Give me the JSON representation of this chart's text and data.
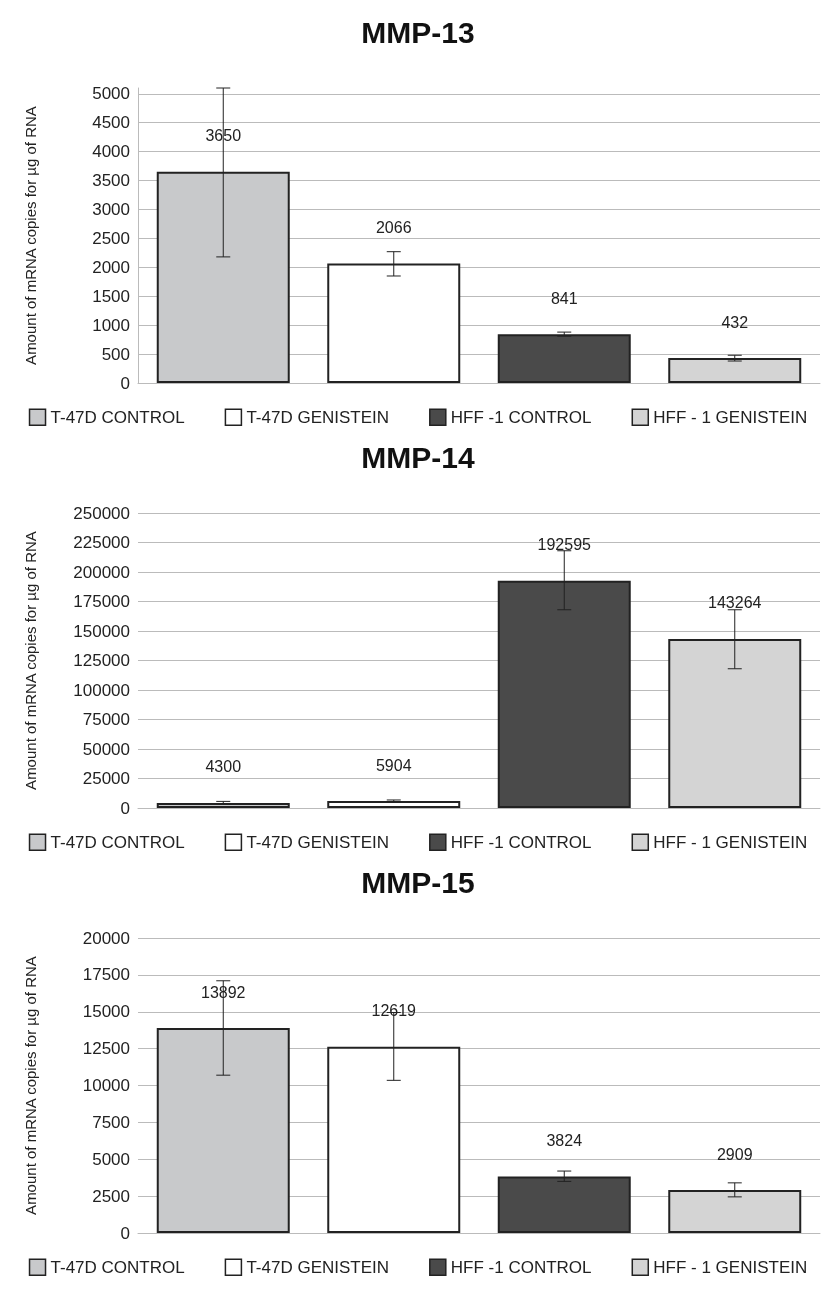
{
  "chart_data": [
    {
      "type": "bar",
      "title": "MMP-13",
      "ylabel": "Amount of mRNA copies for µg of RNA",
      "categories": [
        null,
        null,
        null,
        null
      ],
      "ylim": [
        0,
        5100
      ],
      "yticks": [
        0,
        500,
        1000,
        1500,
        2000,
        2500,
        3000,
        3500,
        4000,
        4500,
        5000
      ],
      "grid": "y",
      "legend": "bottom",
      "data_labels": true,
      "series": [
        {
          "name": "T-47D CONTROL",
          "color": "#c8c9cb",
          "values": [
            3650,
            null,
            null,
            null
          ],
          "errors": [
            [
              2180,
              5100
            ],
            null,
            null,
            null
          ]
        },
        {
          "name": "T-47D GENISTEIN",
          "color": "#ffffff",
          "values": [
            null,
            2066,
            null,
            null
          ],
          "errors": [
            null,
            [
              1850,
              2270
            ],
            null,
            null
          ]
        },
        {
          "name": "HFF -1 CONTROL",
          "color": "#4a4a4a",
          "values": [
            null,
            null,
            841,
            null
          ],
          "errors": [
            null,
            null,
            [
              810,
              880
            ],
            null
          ]
        },
        {
          "name": "HFF - 1 GENISTEIN",
          "color": "#d4d4d4",
          "values": [
            null,
            null,
            null,
            432
          ],
          "errors": [
            null,
            null,
            null,
            [
              380,
              480
            ]
          ]
        }
      ]
    },
    {
      "type": "bar",
      "title": "MMP-14",
      "ylabel": "Amount of mRNA copies for µg of RNA",
      "categories": [
        null,
        null,
        null,
        null
      ],
      "ylim": [
        0,
        250000
      ],
      "yticks": [
        0,
        25000,
        50000,
        75000,
        100000,
        125000,
        150000,
        175000,
        200000,
        225000,
        250000
      ],
      "grid": "y",
      "legend": "bottom",
      "data_labels": true,
      "series": [
        {
          "name": "T-47D CONTROL",
          "color": "#c8c9cb",
          "values": [
            4300,
            null,
            null,
            null
          ],
          "errors": [
            [
              3000,
              5600
            ],
            null,
            null,
            null
          ]
        },
        {
          "name": "T-47D GENISTEIN",
          "color": "#ffffff",
          "values": [
            null,
            5904,
            null,
            null
          ],
          "errors": [
            null,
            [
              5000,
              6800
            ],
            null,
            null
          ]
        },
        {
          "name": "HFF -1 CONTROL",
          "color": "#4a4a4a",
          "values": [
            null,
            null,
            192595,
            null
          ],
          "errors": [
            null,
            null,
            [
              168000,
              218000
            ],
            null
          ]
        },
        {
          "name": "HFF - 1 GENISTEIN",
          "color": "#d4d4d4",
          "values": [
            null,
            null,
            null,
            143264
          ],
          "errors": [
            null,
            null,
            null,
            [
              118000,
              168000
            ]
          ]
        }
      ]
    },
    {
      "type": "bar",
      "title": "MMP-15",
      "ylabel": "Amount of mRNA copies for µg of RNA",
      "categories": [
        null,
        null,
        null,
        null
      ],
      "ylim": [
        0,
        20000
      ],
      "yticks": [
        0,
        2500,
        5000,
        7500,
        10000,
        12500,
        15000,
        17500,
        20000
      ],
      "grid": "y",
      "legend": "bottom",
      "data_labels": true,
      "series": [
        {
          "name": "T-47D CONTROL",
          "color": "#c8c9cb",
          "values": [
            13892,
            null,
            null,
            null
          ],
          "errors": [
            [
              10700,
              17100
            ],
            null,
            null,
            null
          ]
        },
        {
          "name": "T-47D GENISTEIN",
          "color": "#ffffff",
          "values": [
            null,
            12619,
            null,
            null
          ],
          "errors": [
            null,
            [
              10350,
              14950
            ],
            null,
            null
          ]
        },
        {
          "name": "HFF -1 CONTROL",
          "color": "#4a4a4a",
          "values": [
            null,
            null,
            3824,
            null
          ],
          "errors": [
            null,
            null,
            [
              3500,
              4200
            ],
            null
          ]
        },
        {
          "name": "HFF - 1 GENISTEIN",
          "color": "#d4d4d4",
          "values": [
            null,
            null,
            null,
            2909
          ],
          "errors": [
            null,
            null,
            null,
            [
              2450,
              3400
            ]
          ]
        }
      ]
    }
  ]
}
